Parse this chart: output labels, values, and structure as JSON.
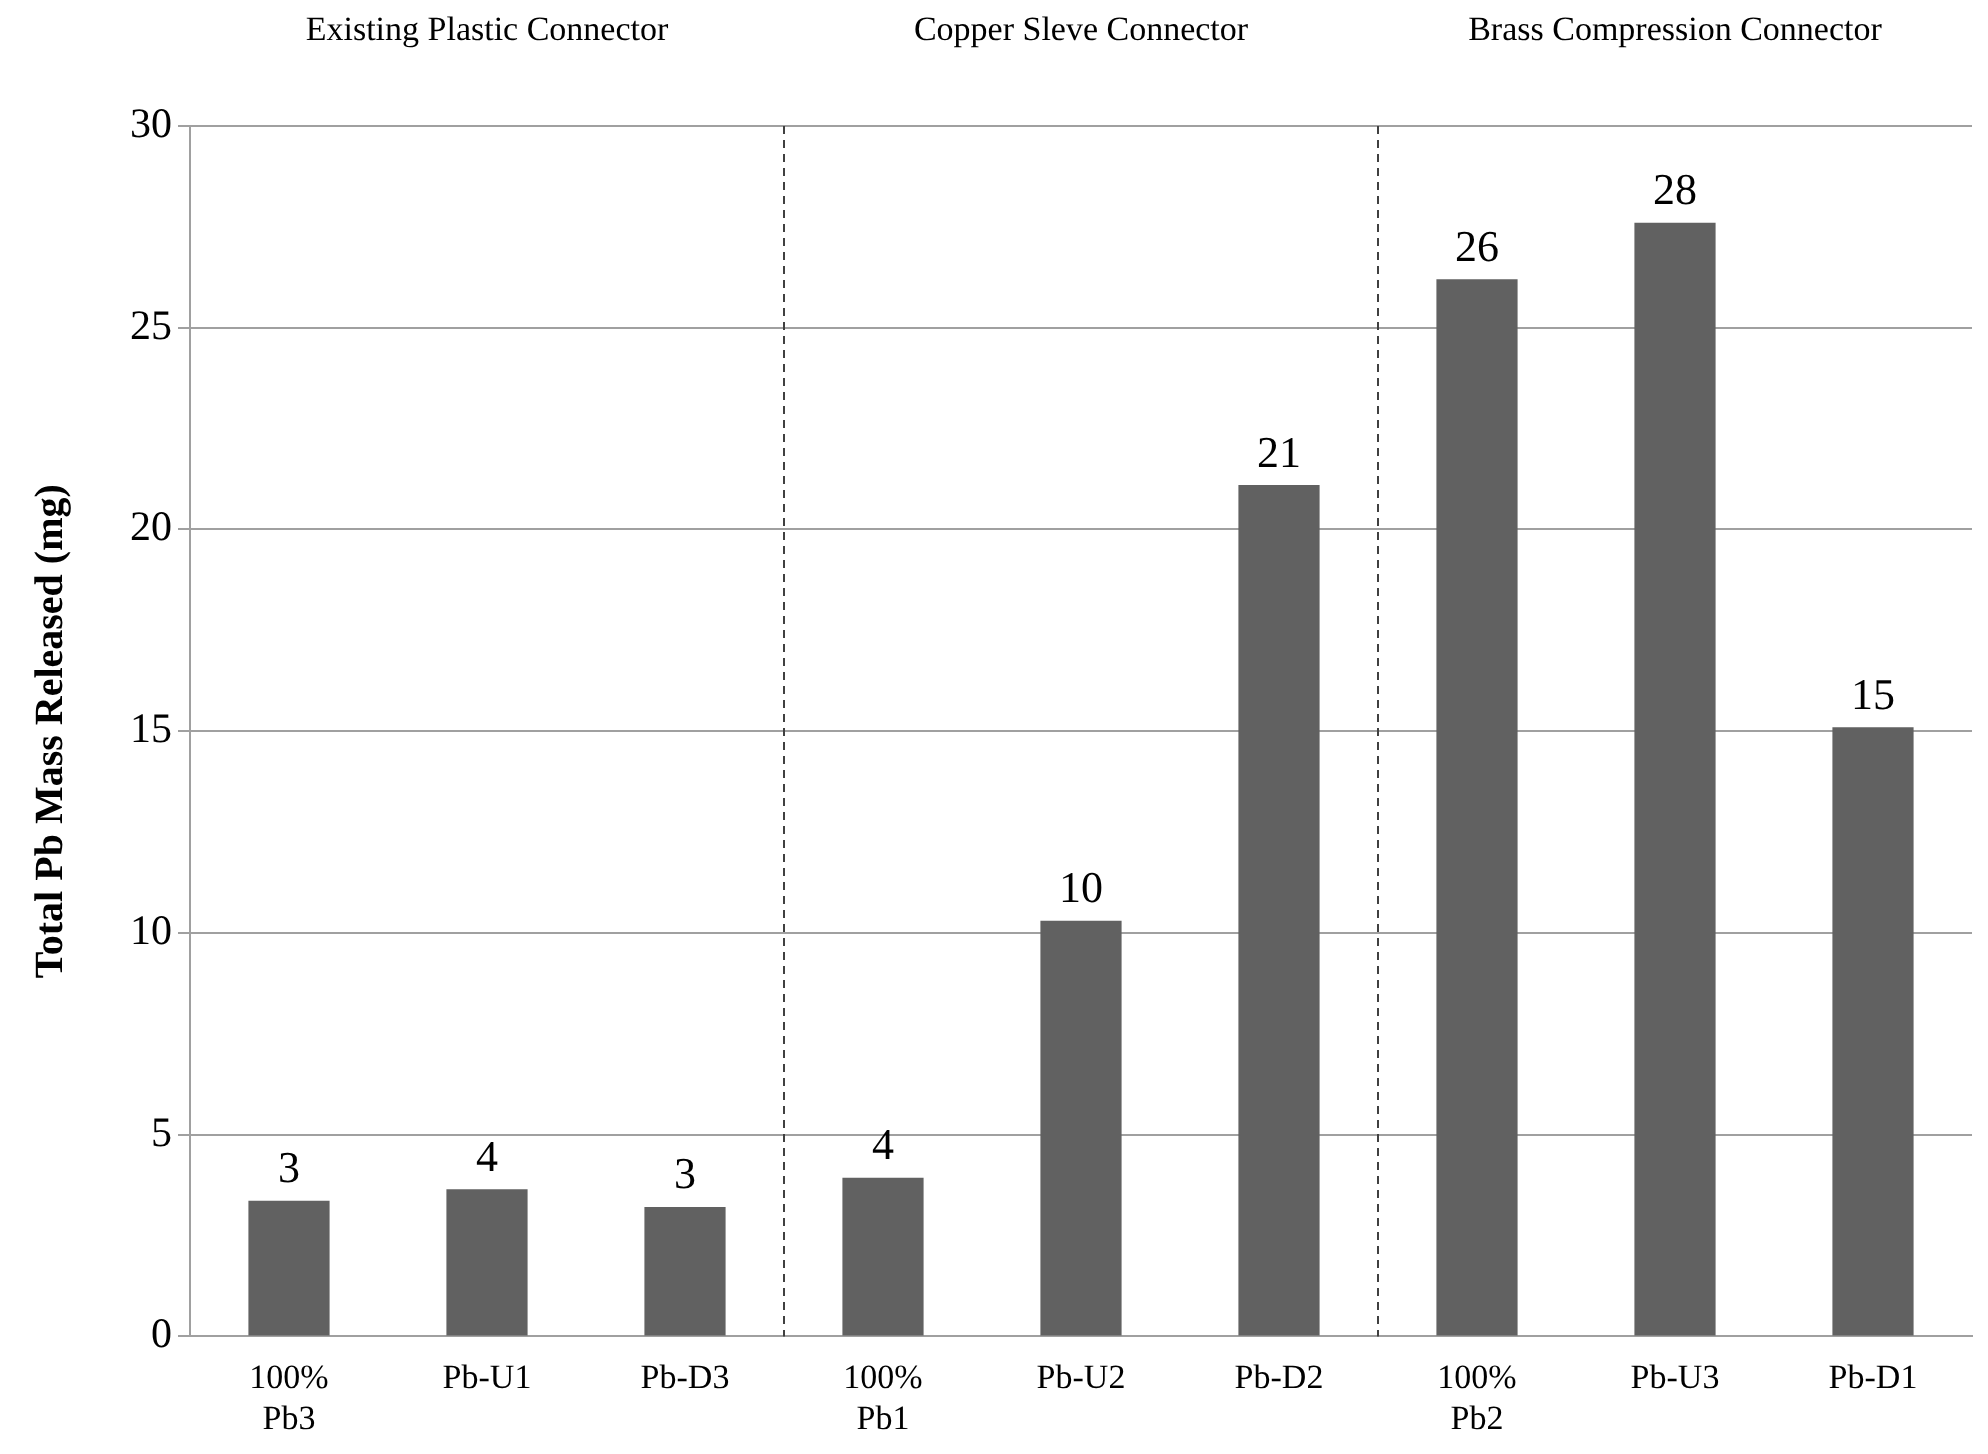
{
  "chart_data": {
    "type": "bar",
    "ylabel": "Total Pb Mass Released (mg)",
    "categories": [
      "100% Pb3",
      "Pb-U1",
      "Pb-D3",
      "100% Pb1",
      "Pb-U2",
      "Pb-D2",
      "100% Pb2",
      "Pb-U3",
      "Pb-D1"
    ],
    "values": [
      3.36,
      3.65,
      3.21,
      3.93,
      10.3,
      21.1,
      26.2,
      27.6,
      15.1
    ],
    "value_labels": [
      "3",
      "4",
      "3",
      "4",
      "10",
      "21",
      "26",
      "28",
      "15"
    ],
    "color": "#616161",
    "ylim": [
      0,
      30
    ],
    "yticks": [
      0,
      5,
      10,
      15,
      20,
      25,
      30
    ],
    "grid": "y",
    "legend": false,
    "annotations": [
      "Existing Plastic Connector",
      "Copper Sleve Connector",
      "Brass Compression Connector"
    ]
  }
}
